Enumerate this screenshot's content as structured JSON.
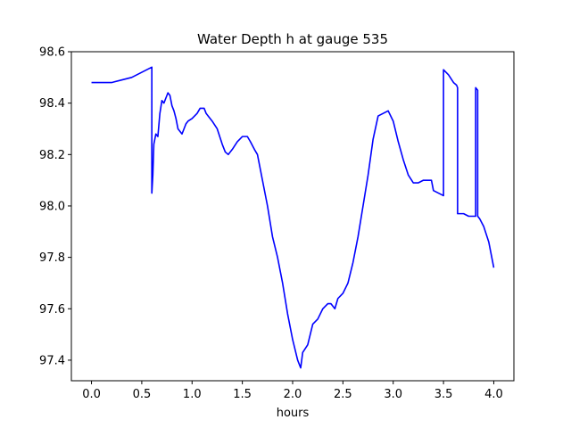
{
  "chart_data": {
    "type": "line",
    "title": "Water Depth h at gauge 535",
    "xlabel": "hours",
    "ylabel": "",
    "xlim": [
      -0.2,
      4.2
    ],
    "ylim": [
      97.32,
      98.6
    ],
    "xticks": [
      "0.0",
      "0.5",
      "1.0",
      "1.5",
      "2.0",
      "2.5",
      "3.0",
      "3.5",
      "4.0"
    ],
    "yticks": [
      "97.4",
      "97.6",
      "97.8",
      "98.0",
      "98.2",
      "98.4",
      "98.6"
    ],
    "grid": false,
    "line_color": "#0000ff",
    "series": [
      {
        "x": [
          0.0,
          0.2,
          0.3,
          0.4,
          0.5,
          0.55,
          0.6,
          0.6,
          0.61,
          0.62,
          0.64,
          0.66,
          0.68,
          0.7,
          0.72,
          0.74,
          0.76,
          0.78,
          0.8,
          0.82,
          0.84,
          0.86,
          0.9,
          0.92,
          0.94,
          0.96,
          1.0,
          1.05,
          1.08,
          1.12,
          1.14,
          1.16,
          1.2,
          1.25,
          1.3,
          1.33,
          1.36,
          1.4,
          1.45,
          1.5,
          1.55,
          1.58,
          1.62,
          1.65,
          1.7,
          1.75,
          1.8,
          1.85,
          1.9,
          1.95,
          2.0,
          2.05,
          2.08,
          2.1,
          2.15,
          2.2,
          2.25,
          2.3,
          2.35,
          2.38,
          2.42,
          2.45,
          2.5,
          2.55,
          2.6,
          2.65,
          2.7,
          2.75,
          2.8,
          2.85,
          2.9,
          2.95,
          3.0,
          3.05,
          3.1,
          3.15,
          3.2,
          3.25,
          3.3,
          3.35,
          3.38,
          3.4,
          3.45,
          3.5,
          3.5,
          3.55,
          3.6,
          3.63,
          3.64,
          3.64,
          3.7,
          3.75,
          3.8,
          3.82,
          3.82,
          3.84,
          3.84,
          3.86,
          3.9,
          3.95,
          4.0
        ],
        "y": [
          98.48,
          98.48,
          98.49,
          98.5,
          98.52,
          98.53,
          98.54,
          98.05,
          98.12,
          98.24,
          98.28,
          98.27,
          98.36,
          98.41,
          98.4,
          98.42,
          98.44,
          98.43,
          98.39,
          98.37,
          98.34,
          98.3,
          98.28,
          98.3,
          98.32,
          98.33,
          98.34,
          98.36,
          98.38,
          98.38,
          98.36,
          98.35,
          98.33,
          98.3,
          98.24,
          98.21,
          98.2,
          98.22,
          98.25,
          98.27,
          98.27,
          98.25,
          98.22,
          98.2,
          98.1,
          98.0,
          97.88,
          97.8,
          97.7,
          97.58,
          97.48,
          97.4,
          97.37,
          97.43,
          97.46,
          97.54,
          97.56,
          97.6,
          97.62,
          97.62,
          97.6,
          97.64,
          97.66,
          97.7,
          97.78,
          97.88,
          98.0,
          98.12,
          98.26,
          98.35,
          98.36,
          98.37,
          98.33,
          98.25,
          98.18,
          98.12,
          98.09,
          98.09,
          98.1,
          98.1,
          98.1,
          98.06,
          98.05,
          98.04,
          98.53,
          98.51,
          98.48,
          98.47,
          98.46,
          97.97,
          97.97,
          97.96,
          97.96,
          97.96,
          98.46,
          98.45,
          97.96,
          97.95,
          97.92,
          97.86,
          97.76
        ]
      }
    ]
  }
}
